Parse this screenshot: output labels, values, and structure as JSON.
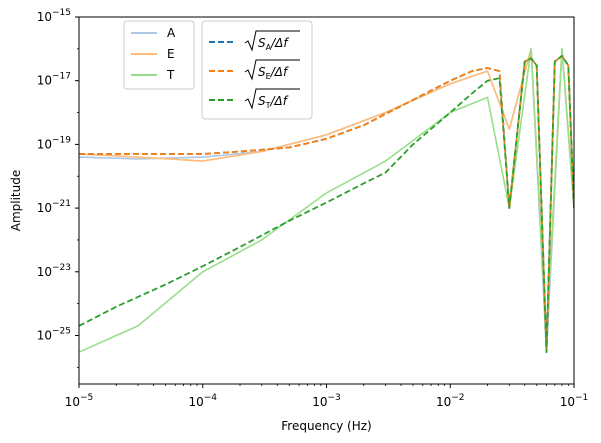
{
  "chart_data": {
    "type": "line",
    "title": "",
    "xlabel": "Frequency (Hz)",
    "ylabel": "Amplitude",
    "xscale": "log",
    "yscale": "log",
    "xlim": [
      1e-05,
      0.1
    ],
    "ylim": [
      3e-27,
      1e-15
    ],
    "grid": false,
    "x_ticks": [
      {
        "value": 1e-05,
        "base": "10",
        "exp": "−5"
      },
      {
        "value": 0.0001,
        "base": "10",
        "exp": "−4"
      },
      {
        "value": 0.001,
        "base": "10",
        "exp": "−3"
      },
      {
        "value": 0.01,
        "base": "10",
        "exp": "−2"
      },
      {
        "value": 0.1,
        "base": "10",
        "exp": "−1"
      }
    ],
    "y_ticks": [
      {
        "value": 1e-25,
        "base": "10",
        "exp": "−25"
      },
      {
        "value": 1e-23,
        "base": "10",
        "exp": "−23"
      },
      {
        "value": 1e-21,
        "base": "10",
        "exp": "−21"
      },
      {
        "value": 1e-19,
        "base": "10",
        "exp": "−19"
      },
      {
        "value": 1e-17,
        "base": "10",
        "exp": "−17"
      },
      {
        "value": 1e-15,
        "base": "10",
        "exp": "−15"
      }
    ],
    "legend_data": {
      "placement": "upper-left",
      "entries": [
        {
          "name": "A",
          "color": "#aec7e8",
          "style": "solid"
        },
        {
          "name": "E",
          "color": "#ffbb78",
          "style": "solid"
        },
        {
          "name": "T",
          "color": "#98df8a",
          "style": "solid"
        }
      ]
    },
    "legend_model": {
      "placement": "upper-center",
      "entries": [
        {
          "sub": "A",
          "color": "#1f77b4",
          "style": "dashed"
        },
        {
          "sub": "E",
          "color": "#ff7f0e",
          "style": "dashed"
        },
        {
          "sub": "T",
          "color": "#2ca02c",
          "style": "dashed"
        }
      ],
      "prefix": "S",
      "suffix": "/Δf"
    },
    "series": [
      {
        "name": "A",
        "kind": "data",
        "color": "#aec7e8",
        "style": "solid",
        "x": [
          1e-05,
          3e-05,
          0.0001,
          0.0003,
          0.001,
          0.003,
          0.01,
          0.02,
          0.03,
          0.045,
          0.06,
          0.08,
          0.1
        ],
        "y": [
          4e-20,
          3.5e-20,
          4e-20,
          6e-20,
          2e-19,
          1e-18,
          8e-18,
          2e-17,
          3e-19,
          1e-16,
          3e-26,
          1e-16,
          1e-21
        ]
      },
      {
        "name": "E",
        "kind": "data",
        "color": "#ffbb78",
        "style": "solid",
        "x": [
          1e-05,
          3e-05,
          0.0001,
          0.0003,
          0.001,
          0.003,
          0.01,
          0.02,
          0.03,
          0.045,
          0.06,
          0.08,
          0.1
        ],
        "y": [
          5e-20,
          4e-20,
          3e-20,
          6e-20,
          2e-19,
          1e-18,
          8e-18,
          2e-17,
          3e-19,
          1e-16,
          1e-25,
          1e-16,
          1e-21
        ]
      },
      {
        "name": "T",
        "kind": "data",
        "color": "#98df8a",
        "style": "solid",
        "x": [
          1e-05,
          2e-05,
          3e-05,
          0.0001,
          0.0003,
          0.001,
          0.003,
          0.01,
          0.02,
          0.03,
          0.045,
          0.06,
          0.08,
          0.1
        ],
        "y": [
          3e-26,
          1e-25,
          2e-25,
          1e-23,
          1e-22,
          3e-21,
          3e-20,
          1e-18,
          3e-18,
          1e-21,
          1e-16,
          1e-25,
          1e-16,
          1e-21
        ]
      },
      {
        "name": "A model",
        "kind": "model",
        "color": "#1f77b4",
        "style": "dashed",
        "x": [
          1e-05,
          0.0001,
          0.0002,
          0.0005,
          0.001,
          0.002,
          0.003,
          0.005,
          0.01,
          0.015,
          0.02,
          0.025,
          0.03,
          0.04,
          0.045,
          0.05,
          0.06,
          0.07,
          0.08,
          0.09,
          0.1
        ],
        "y": [
          5e-20,
          5e-20,
          6e-20,
          8e-20,
          1.5e-19,
          4e-19,
          9e-19,
          2.5e-18,
          1e-17,
          2e-17,
          2.5e-17,
          2e-17,
          1e-21,
          4e-17,
          5e-17,
          3e-17,
          3e-26,
          4e-17,
          6e-17,
          3e-17,
          1e-21
        ]
      },
      {
        "name": "E model",
        "kind": "model",
        "color": "#ff7f0e",
        "style": "dashed",
        "x": [
          1e-05,
          0.0001,
          0.0002,
          0.0005,
          0.001,
          0.002,
          0.003,
          0.005,
          0.01,
          0.015,
          0.02,
          0.025,
          0.03,
          0.04,
          0.045,
          0.05,
          0.06,
          0.07,
          0.08,
          0.09,
          0.1
        ],
        "y": [
          5e-20,
          5e-20,
          6e-20,
          8e-20,
          1.5e-19,
          4e-19,
          9e-19,
          2.5e-18,
          1e-17,
          2e-17,
          2.5e-17,
          2e-17,
          1e-21,
          4e-17,
          5e-17,
          3e-17,
          3e-26,
          4e-17,
          6e-17,
          3e-17,
          1e-21
        ]
      },
      {
        "name": "T model",
        "kind": "model",
        "color": "#2ca02c",
        "style": "dashed",
        "x": [
          1e-05,
          2e-05,
          5e-05,
          0.0001,
          0.0002,
          0.0005,
          0.001,
          0.002,
          0.003,
          0.005,
          0.01,
          0.015,
          0.02,
          0.025,
          0.03,
          0.04,
          0.045,
          0.05,
          0.06,
          0.07,
          0.08,
          0.09,
          0.1
        ],
        "y": [
          2e-25,
          8e-25,
          4e-24,
          1.5e-23,
          6e-23,
          4e-22,
          1.5e-21,
          6e-21,
          1.3e-20,
          1e-19,
          1e-18,
          4e-18,
          1e-17,
          1.2e-17,
          1e-21,
          4e-17,
          5e-17,
          3e-17,
          3e-26,
          4e-17,
          6e-17,
          3e-17,
          1e-21
        ]
      }
    ]
  }
}
